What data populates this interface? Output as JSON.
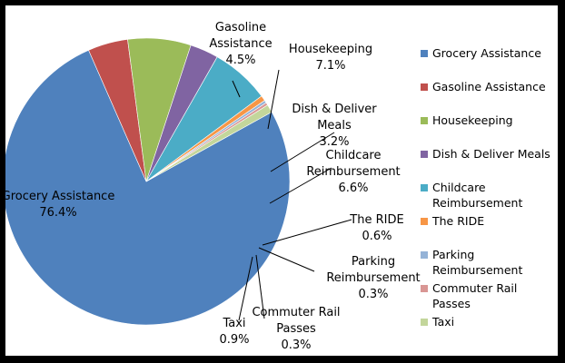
{
  "chart_data": {
    "type": "pie",
    "legend_position": "right",
    "slices": [
      {
        "name": "Grocery Assistance",
        "label_lines": [
          "Grocery Assistance"
        ],
        "value": 76.4,
        "percent_label": "76.4%",
        "color": "#4f81bd"
      },
      {
        "name": "Gasoline Assistance",
        "label_lines": [
          "Gasoline",
          "Assistance"
        ],
        "value": 4.5,
        "percent_label": "4.5%",
        "color": "#c0504d"
      },
      {
        "name": "Housekeeping",
        "label_lines": [
          "Housekeeping"
        ],
        "value": 7.1,
        "percent_label": "7.1%",
        "color": "#9bbb59"
      },
      {
        "name": "Dish & Deliver Meals",
        "label_lines": [
          "Dish & Deliver",
          "Meals"
        ],
        "value": 3.2,
        "percent_label": "3.2%",
        "color": "#8064a2"
      },
      {
        "name": "Childcare Reimbursement",
        "label_lines": [
          "Childcare",
          "Reimbursement"
        ],
        "value": 6.6,
        "percent_label": "6.6%",
        "color": "#4bacc6"
      },
      {
        "name": "The RIDE",
        "label_lines": [
          "The RIDE"
        ],
        "value": 0.6,
        "percent_label": "0.6%",
        "color": "#f79646"
      },
      {
        "name": "Parking Reimbursement",
        "label_lines": [
          "Parking",
          "Reimbursement"
        ],
        "value": 0.3,
        "percent_label": "0.3%",
        "color": "#95b3d7"
      },
      {
        "name": "Commuter Rail Passes",
        "label_lines": [
          "Commuter Rail",
          "Passes"
        ],
        "value": 0.3,
        "percent_label": "0.3%",
        "color": "#d99694"
      },
      {
        "name": "Taxi",
        "label_lines": [
          "Taxi"
        ],
        "value": 0.9,
        "percent_label": "0.9%",
        "color": "#c3d69b"
      }
    ],
    "legend": [
      {
        "lines": [
          "Grocery Assistance"
        ],
        "color": "#4f81bd"
      },
      {
        "lines": [
          "Gasoline Assistance"
        ],
        "color": "#c0504d"
      },
      {
        "lines": [
          "Housekeeping"
        ],
        "color": "#9bbb59"
      },
      {
        "lines": [
          "Dish & Deliver Meals"
        ],
        "color": "#8064a2"
      },
      {
        "lines": [
          "Childcare",
          "Reimbursement"
        ],
        "color": "#4bacc6"
      },
      {
        "lines": [
          "The RIDE"
        ],
        "color": "#f79646"
      },
      {
        "lines": [
          "Parking",
          "Reimbursement"
        ],
        "color": "#95b3d7"
      },
      {
        "lines": [
          "Commuter Rail",
          "Passes"
        ],
        "color": "#d99694"
      },
      {
        "lines": [
          "Taxi"
        ],
        "color": "#c3d69b"
      }
    ]
  }
}
